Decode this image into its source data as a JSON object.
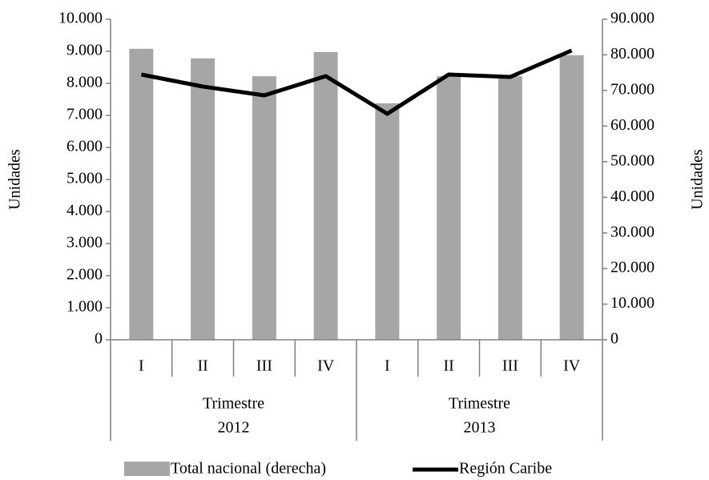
{
  "chart_data": {
    "type": "bar",
    "categories": [
      "I",
      "II",
      "III",
      "IV",
      "I",
      "II",
      "III",
      "IV"
    ],
    "groups": [
      [
        "Trimestre",
        "2012"
      ],
      [
        "Trimestre",
        "2013"
      ]
    ],
    "ylabel": "Unidades",
    "y2label": "Unidades",
    "ylim": [
      0,
      10000
    ],
    "yticks": [
      0,
      {
        "value": 1000,
        "label": "1.000"
      },
      {
        "value": 2000,
        "label": "2.000"
      },
      {
        "value": 3000,
        "label": "3.000"
      },
      {
        "value": 4000,
        "label": "4.000"
      },
      {
        "value": 5000,
        "label": "5.000"
      },
      {
        "value": 6000,
        "label": "6.000"
      },
      {
        "value": 7000,
        "label": "7.000"
      },
      {
        "value": 8000,
        "label": "8.000"
      },
      {
        "value": 9000,
        "label": "9.000"
      },
      {
        "value": 10000,
        "label": "10.000"
      }
    ],
    "y2lim": [
      0,
      90000
    ],
    "y2ticks": [
      0,
      {
        "value": 10000,
        "label": "10.000"
      },
      {
        "value": 20000,
        "label": "20.000"
      },
      {
        "value": 30000,
        "label": "30.000"
      },
      {
        "value": 40000,
        "label": "40.000"
      },
      {
        "value": 50000,
        "label": "50.000"
      },
      {
        "value": 60000,
        "label": "60.000"
      },
      {
        "value": 70000,
        "label": "70.000"
      },
      {
        "value": 80000,
        "label": "80.000"
      },
      {
        "value": 90000,
        "label": "90.000"
      }
    ],
    "legend": "bottom",
    "series": [
      {
        "name": "Total nacional (derecha)",
        "type": "bar",
        "axis": "y2",
        "color": "#a6a6a6",
        "values": [
          81700,
          79000,
          74000,
          80800,
          66400,
          74000,
          74000,
          79900
        ]
      },
      {
        "name": "Región Caribe",
        "type": "line",
        "axis": "y",
        "color": "#000000",
        "values": [
          8275,
          7900,
          7625,
          8225,
          7050,
          8275,
          8200,
          9025
        ]
      }
    ]
  }
}
